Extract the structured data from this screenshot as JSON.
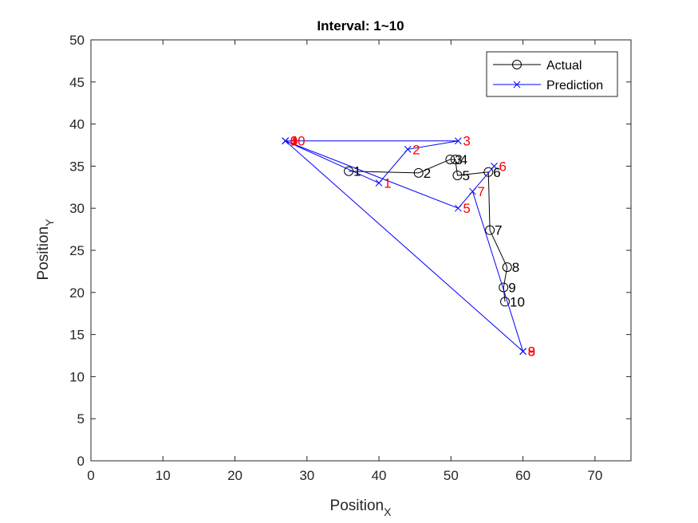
{
  "chart_data": {
    "type": "line",
    "title": "Interval: 1~10",
    "xlabel": {
      "base": "Position",
      "sub": "X"
    },
    "ylabel": {
      "base": "Position",
      "sub": "Y"
    },
    "xlim": [
      0,
      75
    ],
    "ylim": [
      0,
      50
    ],
    "xticks": [
      0,
      10,
      20,
      30,
      40,
      50,
      60,
      70
    ],
    "yticks": [
      0,
      5,
      10,
      15,
      20,
      25,
      30,
      35,
      40,
      45,
      50
    ],
    "grid": false,
    "legend_position": "top-right",
    "series": [
      {
        "name": "Actual",
        "color": "#000000",
        "marker": "circle",
        "label_color": "#000000",
        "points": [
          {
            "label": "1",
            "x": 35.8,
            "y": 34.4
          },
          {
            "label": "2",
            "x": 45.5,
            "y": 34.2
          },
          {
            "label": "3",
            "x": 49.9,
            "y": 35.8
          },
          {
            "label": "4",
            "x": 50.6,
            "y": 35.8
          },
          {
            "label": "5",
            "x": 50.9,
            "y": 33.9
          },
          {
            "label": "6",
            "x": 55.2,
            "y": 34.3
          },
          {
            "label": "7",
            "x": 55.4,
            "y": 27.4
          },
          {
            "label": "8",
            "x": 57.8,
            "y": 23.0
          },
          {
            "label": "9",
            "x": 57.3,
            "y": 20.6
          },
          {
            "label": "10",
            "x": 57.5,
            "y": 18.9
          }
        ]
      },
      {
        "name": "Prediction",
        "color": "#0000ff",
        "marker": "x",
        "label_color": "#ff0000",
        "points": [
          {
            "label": "0",
            "x": 27.0,
            "y": 38.0
          },
          {
            "label": "1",
            "x": 40.0,
            "y": 33.0
          },
          {
            "label": "2",
            "x": 44.0,
            "y": 37.0
          },
          {
            "label": "3",
            "x": 51.0,
            "y": 38.0
          },
          {
            "label": "4",
            "x": 27.0,
            "y": 38.0
          },
          {
            "label": "5",
            "x": 51.0,
            "y": 30.0
          },
          {
            "label": "6",
            "x": 56.0,
            "y": 35.0
          },
          {
            "label": "7",
            "x": 53.0,
            "y": 32.0
          },
          {
            "label": "8",
            "x": 60.0,
            "y": 13.0
          },
          {
            "label": "9",
            "x": 60.0,
            "y": 13.0
          },
          {
            "label": "10",
            "x": 27.0,
            "y": 38.0
          }
        ]
      }
    ]
  }
}
